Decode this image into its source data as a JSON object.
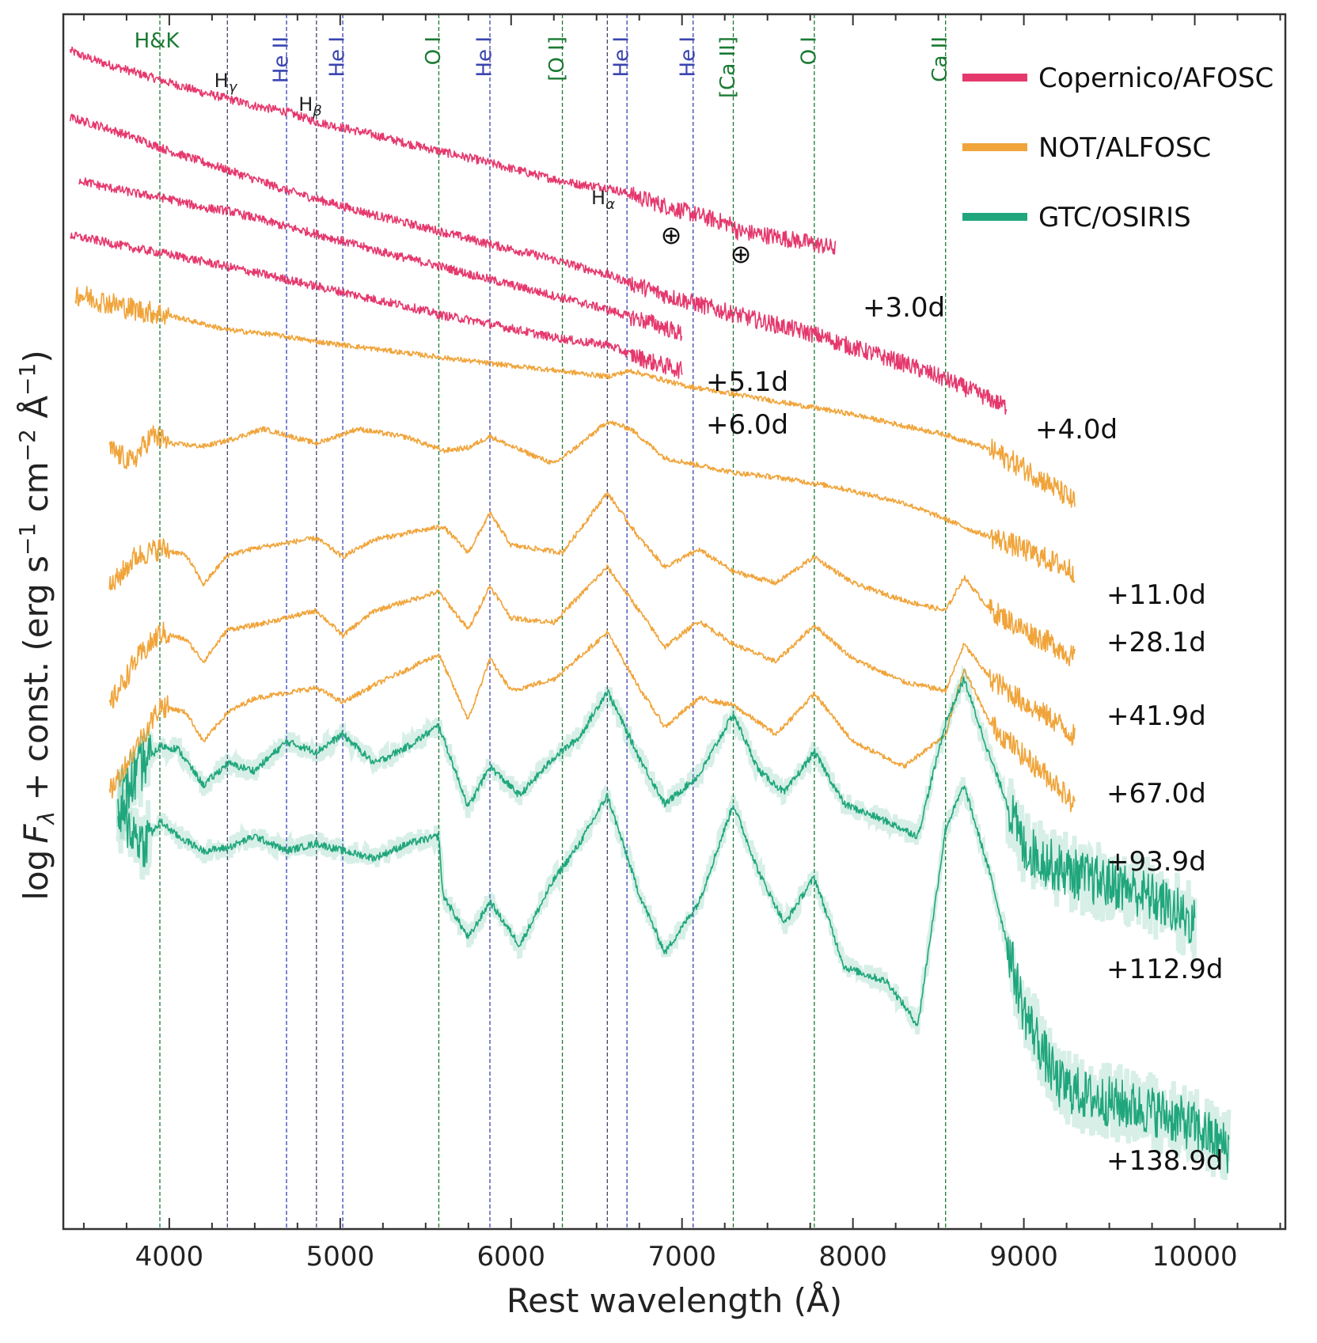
{
  "chart_data": {
    "type": "line",
    "title": "",
    "xlabel": "Rest wavelength (Å)",
    "ylabel_parts": {
      "main": "log",
      "F": "F",
      "sub": "λ",
      "rest": " + const. (erg s",
      "e1": "−1",
      "cm": " cm",
      "e2": "−2",
      "ang": " Å",
      "e3": "−1",
      "close": ")"
    },
    "xlim": [
      3380,
      10530
    ],
    "xticks": [
      4000,
      5000,
      6000,
      7000,
      8000,
      9000,
      10000
    ],
    "xtick_labels": [
      "4000",
      "5000",
      "6000",
      "7000",
      "8000",
      "9000",
      "10000"
    ],
    "yscale": "log (offset)",
    "y_tick_labels_shown": false,
    "grid": false,
    "legend_position": "top-right",
    "colors": {
      "copernico": "#e5396e",
      "not": "#f0a43a",
      "gtc": "#20a67c",
      "green_line": "#1a7a33",
      "blue_line": "#3a44b0",
      "balmer_line": "#444466"
    },
    "legend": [
      {
        "label": "Copernico/AFOSC",
        "color": "#e5396e"
      },
      {
        "label": "NOT/ALFOSC",
        "color": "#f0a43a"
      },
      {
        "label": "GTC/OSIRIS",
        "color": "#20a67c"
      }
    ],
    "line_ids": [
      {
        "label": "H&K",
        "wavelength": 3945,
        "color": "#1a7a33",
        "orient": "horizontal"
      },
      {
        "label": "He II",
        "wavelength": 4686,
        "color": "#3a44b0",
        "orient": "vertical"
      },
      {
        "label": "He I",
        "wavelength": 5015,
        "color": "#3a44b0",
        "orient": "vertical"
      },
      {
        "label": "O I",
        "wavelength": 5577,
        "color": "#1a7a33",
        "orient": "vertical"
      },
      {
        "label": "He I",
        "wavelength": 5876,
        "color": "#3a44b0",
        "orient": "vertical"
      },
      {
        "label": "[O I]",
        "wavelength": 6300,
        "color": "#1a7a33",
        "orient": "vertical"
      },
      {
        "label": "He I",
        "wavelength": 6678,
        "color": "#3a44b0",
        "orient": "vertical"
      },
      {
        "label": "He I",
        "wavelength": 7065,
        "color": "#3a44b0",
        "orient": "vertical"
      },
      {
        "label": "[Ca II]",
        "wavelength": 7300,
        "color": "#1a7a33",
        "orient": "vertical"
      },
      {
        "label": "O I",
        "wavelength": 7774,
        "color": "#1a7a33",
        "orient": "vertical"
      },
      {
        "label": "Ca II",
        "wavelength": 8542,
        "color": "#1a7a33",
        "orient": "vertical"
      }
    ],
    "balmer_lines": [
      {
        "base": "H",
        "sub": "γ",
        "wavelength": 4340
      },
      {
        "base": "H",
        "sub": "β",
        "wavelength": 4861
      },
      {
        "base": "H",
        "sub": "α",
        "wavelength": 6563
      }
    ],
    "telluric_symbol": "⊕",
    "telluric_wavelengths": [
      6880,
      7300
    ],
    "series": [
      {
        "name": "+3.0d",
        "instrument": "Copernico/AFOSC",
        "x": [
          3420,
          3500,
          3600,
          3800,
          4000,
          4200,
          4340,
          4500,
          4686,
          4861,
          5015,
          5200,
          5400,
          5577,
          5800,
          6000,
          6200,
          6400,
          6563,
          6700,
          6880,
          7000,
          7150,
          7300,
          7320,
          7500,
          7700,
          7900
        ],
        "y": [
          0,
          -0.04,
          -0.08,
          -0.15,
          -0.22,
          -0.29,
          -0.33,
          -0.38,
          -0.42,
          -0.49,
          -0.53,
          -0.58,
          -0.64,
          -0.69,
          -0.75,
          -0.81,
          -0.87,
          -0.92,
          -0.94,
          -0.99,
          -1.06,
          -1.1,
          -1.15,
          -1.2,
          -1.24,
          -1.27,
          -1.31,
          -1.36
        ]
      },
      {
        "name": "+4.0d",
        "instrument": "Copernico/AFOSC",
        "x": [
          3420,
          3600,
          3800,
          4000,
          4340,
          4686,
          4861,
          5200,
          5577,
          5876,
          6200,
          6563,
          6900,
          7300,
          7500,
          7774,
          8000,
          8300,
          8542,
          8700,
          8900
        ],
        "y": [
          -0.46,
          -0.52,
          -0.6,
          -0.69,
          -0.82,
          -0.96,
          -1.02,
          -1.13,
          -1.24,
          -1.33,
          -1.42,
          -1.54,
          -1.68,
          -1.81,
          -1.87,
          -1.95,
          -2.04,
          -2.15,
          -2.26,
          -2.34,
          -2.45
        ]
      },
      {
        "name": "+5.1d",
        "instrument": "Copernico/AFOSC",
        "x": [
          3470,
          3600,
          3800,
          4000,
          4200,
          4340,
          4500,
          4686,
          4861,
          5015,
          5200,
          5400,
          5577,
          5800,
          6000,
          6200,
          6400,
          6563,
          6700,
          6850,
          7000
        ],
        "y": [
          -0.89,
          -0.93,
          -0.98,
          -1.02,
          -1.08,
          -1.1,
          -1.15,
          -1.21,
          -1.26,
          -1.31,
          -1.37,
          -1.43,
          -1.48,
          -1.55,
          -1.61,
          -1.67,
          -1.73,
          -1.78,
          -1.83,
          -1.88,
          -1.95
        ]
      },
      {
        "name": "+6.0d",
        "instrument": "Copernico/AFOSC",
        "x": [
          3420,
          3600,
          3800,
          4000,
          4200,
          4400,
          4600,
          4861,
          5015,
          5200,
          5400,
          5600,
          5800,
          6000,
          6200,
          6400,
          6563,
          6700,
          6850,
          7000
        ],
        "y": [
          -1.27,
          -1.31,
          -1.36,
          -1.4,
          -1.45,
          -1.5,
          -1.55,
          -1.62,
          -1.66,
          -1.71,
          -1.76,
          -1.82,
          -1.86,
          -1.91,
          -1.96,
          -2.0,
          -2.02,
          -2.09,
          -2.15,
          -2.2
        ]
      },
      {
        "name": "+11.0d",
        "instrument": "NOT/ALFOSC",
        "x": [
          3450,
          3600,
          3800,
          4000,
          4340,
          4600,
          4861,
          5200,
          5600,
          5876,
          6200,
          6563,
          6700,
          7000,
          7300,
          7700,
          8000,
          8300,
          8542,
          8800,
          9000,
          9200,
          9300
        ],
        "y": [
          -1.67,
          -1.72,
          -1.78,
          -1.82,
          -1.92,
          -1.95,
          -2.0,
          -2.05,
          -2.11,
          -2.15,
          -2.19,
          -2.24,
          -2.2,
          -2.3,
          -2.36,
          -2.44,
          -2.5,
          -2.58,
          -2.64,
          -2.74,
          -2.87,
          -3.02,
          -3.11
        ]
      },
      {
        "name": "+28.1d",
        "instrument": "NOT/ALFOSC",
        "x": [
          3650,
          3780,
          3900,
          4000,
          4200,
          4340,
          4550,
          4861,
          5100,
          5400,
          5600,
          5750,
          5876,
          6000,
          6250,
          6400,
          6563,
          6700,
          6900,
          7100,
          7300,
          7600,
          7900,
          8300,
          8542,
          8700,
          8900,
          9100,
          9300
        ],
        "y": [
          -2.74,
          -2.83,
          -2.64,
          -2.7,
          -2.72,
          -2.68,
          -2.6,
          -2.7,
          -2.6,
          -2.66,
          -2.75,
          -2.73,
          -2.65,
          -2.72,
          -2.84,
          -2.71,
          -2.55,
          -2.6,
          -2.8,
          -2.85,
          -2.9,
          -2.94,
          -3.0,
          -3.11,
          -3.22,
          -3.3,
          -3.38,
          -3.48,
          -3.58
        ]
      },
      {
        "name": "+41.9d",
        "instrument": "NOT/ALFOSC",
        "x": [
          3650,
          3800,
          3950,
          4100,
          4200,
          4340,
          4500,
          4861,
          5015,
          5200,
          5600,
          5750,
          5876,
          6000,
          6300,
          6563,
          6750,
          6900,
          7100,
          7300,
          7550,
          7774,
          8000,
          8300,
          8542,
          8650,
          8800,
          9000,
          9200,
          9300
        ],
        "y": [
          -3.7,
          -3.48,
          -3.42,
          -3.47,
          -3.67,
          -3.47,
          -3.42,
          -3.35,
          -3.48,
          -3.36,
          -3.27,
          -3.45,
          -3.18,
          -3.4,
          -3.45,
          -3.04,
          -3.35,
          -3.55,
          -3.43,
          -3.58,
          -3.66,
          -3.48,
          -3.66,
          -3.78,
          -3.85,
          -3.62,
          -3.84,
          -3.98,
          -4.1,
          -4.18
        ]
      },
      {
        "name": "+67.0d",
        "instrument": "NOT/ALFOSC",
        "x": [
          3650,
          3800,
          3950,
          4100,
          4200,
          4340,
          4500,
          4861,
          5015,
          5200,
          5577,
          5750,
          5876,
          6000,
          6250,
          6563,
          6750,
          6900,
          7100,
          7300,
          7550,
          7774,
          8000,
          8300,
          8542,
          8650,
          8800,
          9000,
          9200,
          9300
        ],
        "y": [
          -4.5,
          -4.2,
          -4.0,
          -4.05,
          -4.2,
          -3.98,
          -3.95,
          -3.85,
          -4.02,
          -3.85,
          -3.72,
          -3.98,
          -3.68,
          -3.9,
          -3.93,
          -3.55,
          -3.85,
          -4.1,
          -3.92,
          -4.08,
          -4.2,
          -3.95,
          -4.18,
          -4.34,
          -4.4,
          -4.08,
          -4.31,
          -4.48,
          -4.62,
          -4.72
        ]
      },
      {
        "name": "+93.9d",
        "instrument": "NOT/ALFOSC",
        "x": [
          3650,
          3800,
          3950,
          4100,
          4200,
          4340,
          4500,
          4861,
          5015,
          5200,
          5577,
          5750,
          5876,
          6000,
          6250,
          6563,
          6750,
          6900,
          7100,
          7300,
          7550,
          7774,
          8000,
          8300,
          8542,
          8650,
          8800,
          9000,
          9200,
          9300
        ],
        "y": [
          -5.1,
          -4.8,
          -4.5,
          -4.55,
          -4.75,
          -4.55,
          -4.45,
          -4.38,
          -4.48,
          -4.36,
          -4.15,
          -4.6,
          -4.18,
          -4.4,
          -4.32,
          -4.0,
          -4.38,
          -4.65,
          -4.45,
          -4.5,
          -4.7,
          -4.42,
          -4.75,
          -4.92,
          -4.7,
          -4.25,
          -4.62,
          -4.85,
          -5.05,
          -5.2
        ]
      },
      {
        "name": "+112.9d",
        "instrument": "GTC/OSIRIS",
        "x": [
          3700,
          3850,
          3950,
          4050,
          4200,
          4340,
          4500,
          4686,
          4861,
          5015,
          5200,
          5400,
          5577,
          5750,
          5876,
          6050,
          6250,
          6400,
          6563,
          6750,
          6900,
          7100,
          7300,
          7450,
          7600,
          7774,
          7950,
          8200,
          8380,
          8542,
          8650,
          8800,
          9000,
          9200,
          9400,
          9600,
          9800,
          10000
        ],
        "y": [
          -5.2,
          -4.9,
          -4.78,
          -4.8,
          -5.05,
          -4.9,
          -4.95,
          -4.75,
          -4.82,
          -4.7,
          -4.9,
          -4.78,
          -4.64,
          -5.2,
          -4.92,
          -5.12,
          -4.86,
          -4.72,
          -4.4,
          -4.86,
          -5.18,
          -4.98,
          -4.56,
          -4.95,
          -5.1,
          -4.82,
          -5.18,
          -5.3,
          -5.4,
          -4.62,
          -4.32,
          -4.85,
          -5.48,
          -5.62,
          -5.7,
          -5.75,
          -5.85,
          -6.0
        ]
      },
      {
        "name": "+138.9d",
        "instrument": "GTC/OSIRIS",
        "x": [
          3700,
          3850,
          3950,
          4050,
          4200,
          4340,
          4500,
          4686,
          4861,
          5015,
          5200,
          5400,
          5577,
          5600,
          5750,
          5876,
          6050,
          6250,
          6400,
          6563,
          6750,
          6900,
          7100,
          7300,
          7450,
          7600,
          7774,
          7950,
          8200,
          8380,
          8542,
          8650,
          8800,
          9000,
          9200,
          9400,
          9600,
          9800,
          10000,
          10200
        ],
        "y": [
          -5.25,
          -5.45,
          -5.3,
          -5.4,
          -5.5,
          -5.48,
          -5.4,
          -5.5,
          -5.45,
          -5.5,
          -5.55,
          -5.45,
          -5.4,
          -5.8,
          -6.1,
          -5.85,
          -6.15,
          -5.7,
          -5.45,
          -5.12,
          -5.8,
          -6.2,
          -5.85,
          -5.18,
          -5.65,
          -6.0,
          -5.68,
          -6.3,
          -6.4,
          -6.7,
          -5.35,
          -5.05,
          -5.65,
          -6.6,
          -7.1,
          -7.2,
          -7.25,
          -7.3,
          -7.4,
          -7.55
        ]
      }
    ],
    "ylim": [
      -8.1,
      0.25
    ]
  }
}
